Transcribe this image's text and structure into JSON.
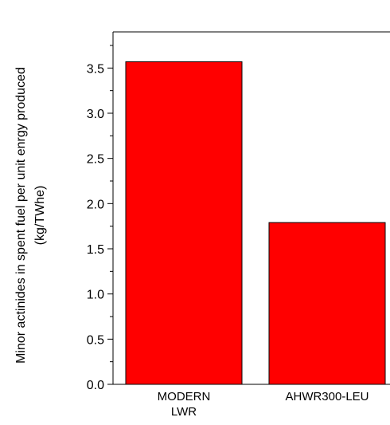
{
  "chart_data": {
    "type": "bar",
    "categories": [
      "MODERN\nLWR",
      "AHWR300-LEU"
    ],
    "values": [
      3.57,
      1.79
    ],
    "title": "",
    "xlabel": "",
    "ylabel_lines": [
      "Minor actinides in spent fuel per unit enrgy produced",
      "(kg/TWhe)"
    ],
    "ylim": [
      0,
      3.9
    ],
    "yticks": [
      0.0,
      0.5,
      1.0,
      1.5,
      2.0,
      2.5,
      3.0,
      3.5
    ],
    "ytick_labels": [
      "0.0",
      "0.5",
      "1.0",
      "1.5",
      "2.0",
      "2.5",
      "3.0",
      "3.5"
    ],
    "minor_tick_step": 0.25,
    "grid": false,
    "legend": "none",
    "colors": {
      "bar": "#ff0000",
      "bar_edge": "#000000",
      "axis": "#000000"
    }
  }
}
